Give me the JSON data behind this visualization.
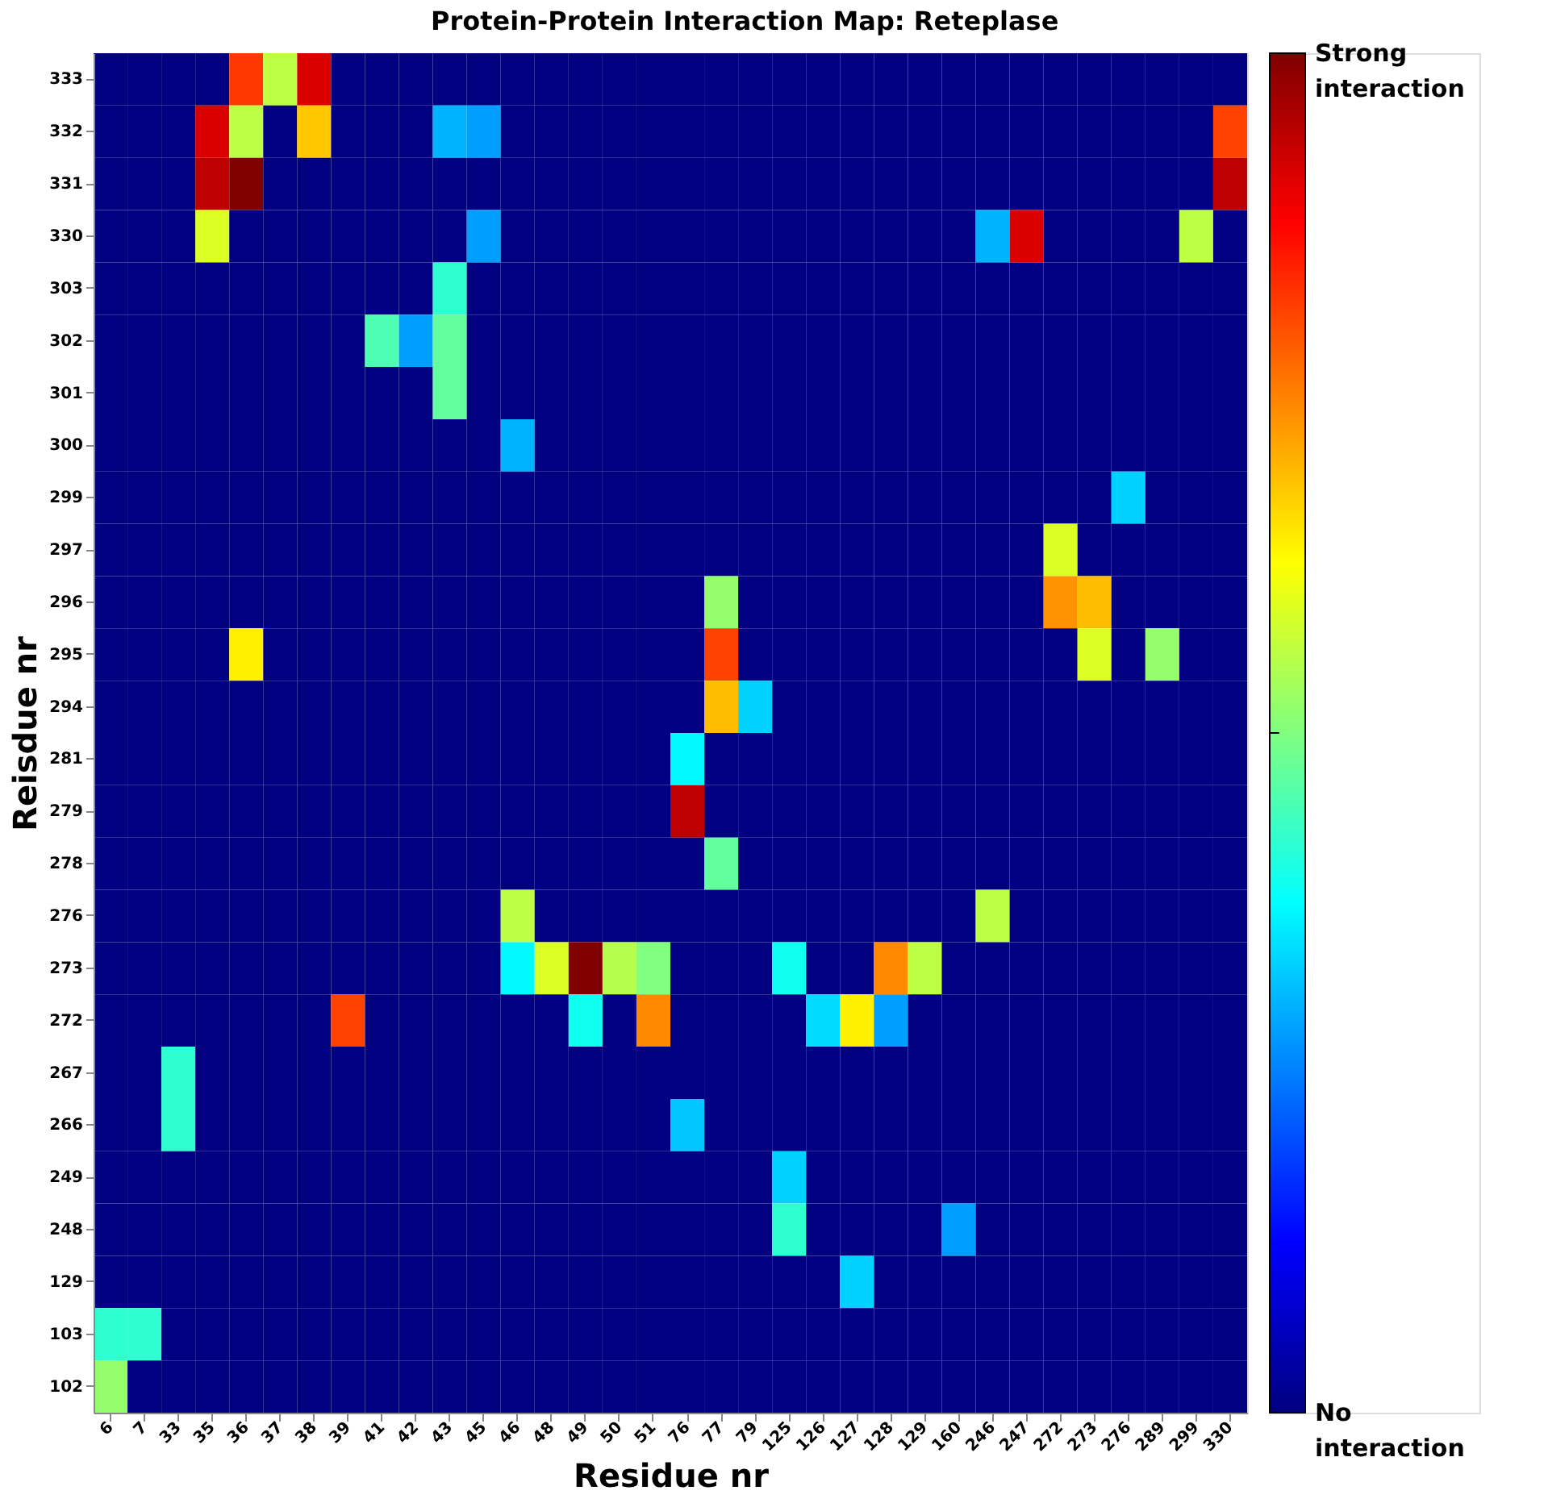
{
  "chart_data": {
    "type": "heatmap",
    "title": "Protein-Protein Interaction Map: Reteplase",
    "xlabel": "Residue nr",
    "ylabel": "Reisdue nr",
    "categories": [
      "6",
      "7",
      "33",
      "35",
      "36",
      "37",
      "38",
      "39",
      "41",
      "42",
      "43",
      "45",
      "46",
      "48",
      "49",
      "50",
      "51",
      "76",
      "77",
      "79",
      "125",
      "126",
      "127",
      "128",
      "129",
      "160",
      "246",
      "247",
      "272",
      "273",
      "276",
      "289",
      "299",
      "330"
    ],
    "y_categories": [
      "333",
      "332",
      "331",
      "330",
      "303",
      "302",
      "301",
      "300",
      "299",
      "297",
      "296",
      "295",
      "294",
      "281",
      "279",
      "278",
      "276",
      "273",
      "272",
      "267",
      "266",
      "249",
      "248",
      "129",
      "103",
      "102"
    ],
    "cells": [
      [
        0,
        0,
        0,
        0,
        0.82,
        0.56,
        0.91,
        0,
        0,
        0,
        0,
        0,
        0,
        0,
        0,
        0,
        0,
        0,
        0,
        0,
        0,
        0,
        0,
        0,
        0,
        0,
        0,
        0,
        0,
        0,
        0,
        0,
        0,
        0
      ],
      [
        0,
        0,
        0,
        0.91,
        0.56,
        0,
        0.68,
        0,
        0,
        0,
        0.3,
        0.28,
        0,
        0,
        0,
        0,
        0,
        0,
        0,
        0,
        0,
        0,
        0,
        0,
        0,
        0,
        0,
        0,
        0,
        0,
        0,
        0,
        0,
        0.81
      ],
      [
        0,
        0,
        0,
        0.94,
        1.0,
        0,
        0,
        0,
        0,
        0,
        0,
        0,
        0,
        0,
        0,
        0,
        0,
        0,
        0,
        0,
        0,
        0,
        0,
        0,
        0,
        0,
        0,
        0,
        0,
        0,
        0,
        0,
        0,
        0.94
      ],
      [
        0,
        0,
        0,
        0.59,
        0,
        0,
        0,
        0,
        0,
        0,
        0,
        0.28,
        0,
        0,
        0,
        0,
        0,
        0,
        0,
        0,
        0,
        0,
        0,
        0,
        0,
        0,
        0.3,
        0.91,
        0,
        0,
        0,
        0,
        0.56,
        0
      ],
      [
        0,
        0,
        0,
        0,
        0,
        0,
        0,
        0,
        0,
        0,
        0.42,
        0,
        0,
        0,
        0,
        0,
        0,
        0,
        0,
        0,
        0,
        0,
        0,
        0,
        0,
        0,
        0,
        0,
        0,
        0,
        0,
        0,
        0,
        0
      ],
      [
        0,
        0,
        0,
        0,
        0,
        0,
        0,
        0,
        0.45,
        0.28,
        0.47,
        0,
        0,
        0,
        0,
        0,
        0,
        0,
        0,
        0,
        0,
        0,
        0,
        0,
        0,
        0,
        0,
        0,
        0,
        0,
        0,
        0,
        0,
        0
      ],
      [
        0,
        0,
        0,
        0,
        0,
        0,
        0,
        0,
        0,
        0,
        0.47,
        0,
        0,
        0,
        0,
        0,
        0,
        0,
        0,
        0,
        0,
        0,
        0,
        0,
        0,
        0,
        0,
        0,
        0,
        0,
        0,
        0,
        0,
        0
      ],
      [
        0,
        0,
        0,
        0,
        0,
        0,
        0,
        0,
        0,
        0,
        0,
        0,
        0.3,
        0,
        0,
        0,
        0,
        0,
        0,
        0,
        0,
        0,
        0,
        0,
        0,
        0,
        0,
        0,
        0,
        0,
        0,
        0,
        0,
        0
      ],
      [
        0,
        0,
        0,
        0,
        0,
        0,
        0,
        0,
        0,
        0,
        0,
        0,
        0,
        0,
        0,
        0,
        0,
        0,
        0,
        0,
        0,
        0,
        0,
        0,
        0,
        0,
        0,
        0,
        0,
        0,
        0.33,
        0,
        0,
        0
      ],
      [
        0,
        0,
        0,
        0,
        0,
        0,
        0,
        0,
        0,
        0,
        0,
        0,
        0,
        0,
        0,
        0,
        0,
        0,
        0,
        0,
        0,
        0,
        0,
        0,
        0,
        0,
        0,
        0,
        0.59,
        0,
        0,
        0,
        0,
        0
      ],
      [
        0,
        0,
        0,
        0,
        0,
        0,
        0,
        0,
        0,
        0,
        0,
        0,
        0,
        0,
        0,
        0,
        0,
        0,
        0.52,
        0,
        0,
        0,
        0,
        0,
        0,
        0,
        0,
        0,
        0.73,
        0.69,
        0,
        0,
        0,
        0
      ],
      [
        0,
        0,
        0,
        0,
        0.64,
        0,
        0,
        0,
        0,
        0,
        0,
        0,
        0,
        0,
        0,
        0,
        0,
        0,
        0.81,
        0,
        0,
        0,
        0,
        0,
        0,
        0,
        0,
        0,
        0,
        0.59,
        0,
        0.52,
        0,
        0
      ],
      [
        0,
        0,
        0,
        0,
        0,
        0,
        0,
        0,
        0,
        0,
        0,
        0,
        0,
        0,
        0,
        0,
        0,
        0,
        0.69,
        0.33,
        0,
        0,
        0,
        0,
        0,
        0,
        0,
        0,
        0,
        0,
        0,
        0,
        0,
        0
      ],
      [
        0,
        0,
        0,
        0,
        0,
        0,
        0,
        0,
        0,
        0,
        0,
        0,
        0,
        0,
        0,
        0,
        0,
        0.37,
        0,
        0,
        0,
        0,
        0,
        0,
        0,
        0,
        0,
        0,
        0,
        0,
        0,
        0,
        0,
        0
      ],
      [
        0,
        0,
        0,
        0,
        0,
        0,
        0,
        0,
        0,
        0,
        0,
        0,
        0,
        0,
        0,
        0,
        0,
        0.94,
        0,
        0,
        0,
        0,
        0,
        0,
        0,
        0,
        0,
        0,
        0,
        0,
        0,
        0,
        0,
        0
      ],
      [
        0,
        0,
        0,
        0,
        0,
        0,
        0,
        0,
        0,
        0,
        0,
        0,
        0,
        0,
        0,
        0,
        0,
        0,
        0.47,
        0,
        0,
        0,
        0,
        0,
        0,
        0,
        0,
        0,
        0,
        0,
        0,
        0,
        0,
        0
      ],
      [
        0,
        0,
        0,
        0,
        0,
        0,
        0,
        0,
        0,
        0,
        0,
        0,
        0.56,
        0,
        0,
        0,
        0,
        0,
        0,
        0,
        0,
        0,
        0,
        0,
        0,
        0,
        0.56,
        0,
        0,
        0,
        0,
        0,
        0,
        0
      ],
      [
        0,
        0,
        0,
        0,
        0,
        0,
        0,
        0,
        0,
        0,
        0,
        0,
        0.37,
        0.59,
        1.0,
        0.55,
        0.5,
        0,
        0,
        0,
        0.39,
        0,
        0,
        0.74,
        0.56,
        0,
        0,
        0,
        0,
        0,
        0,
        0,
        0,
        0
      ],
      [
        0,
        0,
        0,
        0,
        0,
        0,
        0,
        0.81,
        0,
        0,
        0,
        0,
        0,
        0,
        0.39,
        0,
        0.74,
        0,
        0,
        0,
        0,
        0.34,
        0.64,
        0.28,
        0,
        0,
        0,
        0,
        0,
        0,
        0,
        0,
        0,
        0
      ],
      [
        0,
        0,
        0.42,
        0,
        0,
        0,
        0,
        0,
        0,
        0,
        0,
        0,
        0,
        0,
        0,
        0,
        0,
        0,
        0,
        0,
        0,
        0,
        0,
        0,
        0,
        0,
        0,
        0,
        0,
        0,
        0,
        0,
        0,
        0
      ],
      [
        0,
        0,
        0.42,
        0,
        0,
        0,
        0,
        0,
        0,
        0,
        0,
        0,
        0,
        0,
        0,
        0,
        0,
        0.32,
        0,
        0,
        0,
        0,
        0,
        0,
        0,
        0,
        0,
        0,
        0,
        0,
        0,
        0,
        0,
        0
      ],
      [
        0,
        0,
        0,
        0,
        0,
        0,
        0,
        0,
        0,
        0,
        0,
        0,
        0,
        0,
        0,
        0,
        0,
        0,
        0,
        0,
        0.33,
        0,
        0,
        0,
        0,
        0,
        0,
        0,
        0,
        0,
        0,
        0,
        0,
        0
      ],
      [
        0,
        0,
        0,
        0,
        0,
        0,
        0,
        0,
        0,
        0,
        0,
        0,
        0,
        0,
        0,
        0,
        0,
        0,
        0,
        0,
        0.42,
        0,
        0,
        0,
        0,
        0.28,
        0,
        0,
        0,
        0,
        0,
        0,
        0,
        0
      ],
      [
        0,
        0,
        0,
        0,
        0,
        0,
        0,
        0,
        0,
        0,
        0,
        0,
        0,
        0,
        0,
        0,
        0,
        0,
        0,
        0,
        0,
        0,
        0.33,
        0,
        0,
        0,
        0,
        0,
        0,
        0,
        0,
        0,
        0,
        0
      ],
      [
        0.42,
        0.42,
        0,
        0,
        0,
        0,
        0,
        0,
        0,
        0,
        0,
        0,
        0,
        0,
        0,
        0,
        0,
        0,
        0,
        0,
        0,
        0,
        0,
        0,
        0,
        0,
        0,
        0,
        0,
        0,
        0,
        0,
        0,
        0
      ],
      [
        0.52,
        0,
        0,
        0,
        0,
        0,
        0,
        0,
        0,
        0,
        0,
        0,
        0,
        0,
        0,
        0,
        0,
        0,
        0,
        0,
        0,
        0,
        0,
        0,
        0,
        0,
        0,
        0,
        0,
        0,
        0,
        0,
        0,
        0
      ]
    ],
    "clim": [
      0,
      1
    ],
    "cticks": [
      {
        "value": 0,
        "label": "No interaction"
      },
      {
        "value": 0.5,
        "label": null
      },
      {
        "value": 1,
        "label": "Strong interaction"
      }
    ]
  }
}
